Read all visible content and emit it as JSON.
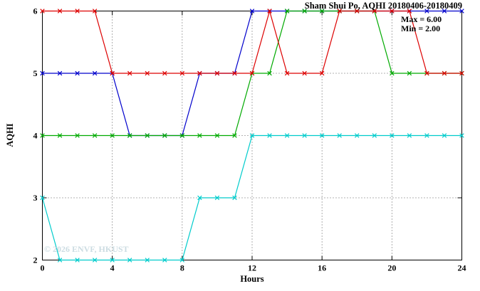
{
  "header": {
    "title": "Sham Shui Po, AQHI 20180406-20180409"
  },
  "annotations": {
    "max_label": "Max = 6.00",
    "min_label": "Min = 2.00"
  },
  "watermark": "© 2026 ENVF, HKUST",
  "chart_data": {
    "type": "line",
    "title": "Sham Shui Po, AQHI 20180406-20180409",
    "xlabel": "Hours",
    "ylabel": "AQHI",
    "xlim": [
      0,
      24
    ],
    "ylim": [
      2,
      6
    ],
    "xticks": [
      0,
      4,
      8,
      12,
      16,
      20,
      24
    ],
    "yticks": [
      2,
      3,
      4,
      5,
      6
    ],
    "grid": "dotted",
    "legend": "none",
    "marker": "x",
    "x": [
      0,
      1,
      2,
      3,
      4,
      5,
      6,
      7,
      8,
      9,
      10,
      11,
      12,
      13,
      14,
      15,
      16,
      17,
      18,
      19,
      20,
      21,
      22,
      23,
      24
    ],
    "series": [
      {
        "name": "red",
        "color": "#dd0000",
        "values": [
          6,
          6,
          6,
          6,
          5,
          5,
          5,
          5,
          5,
          5,
          5,
          5,
          5,
          6,
          5,
          5,
          5,
          6,
          6,
          6,
          6,
          6,
          5,
          5,
          5
        ]
      },
      {
        "name": "green",
        "color": "#00aa00",
        "values": [
          4,
          4,
          4,
          4,
          4,
          4,
          4,
          4,
          4,
          4,
          4,
          4,
          5,
          5,
          6,
          6,
          6,
          6,
          6,
          6,
          5,
          5,
          5,
          5,
          5
        ]
      },
      {
        "name": "blue",
        "color": "#0000cc",
        "values": [
          5,
          5,
          5,
          5,
          5,
          4,
          4,
          4,
          4,
          5,
          5,
          5,
          6,
          6,
          6,
          6,
          6,
          6,
          6,
          6,
          6,
          6,
          6,
          6,
          6
        ]
      },
      {
        "name": "cyan",
        "color": "#00cccc",
        "values": [
          3,
          2,
          2,
          2,
          2,
          2,
          2,
          2,
          2,
          3,
          3,
          3,
          4,
          4,
          4,
          4,
          4,
          4,
          4,
          4,
          4,
          4,
          4,
          4,
          4
        ]
      }
    ]
  }
}
